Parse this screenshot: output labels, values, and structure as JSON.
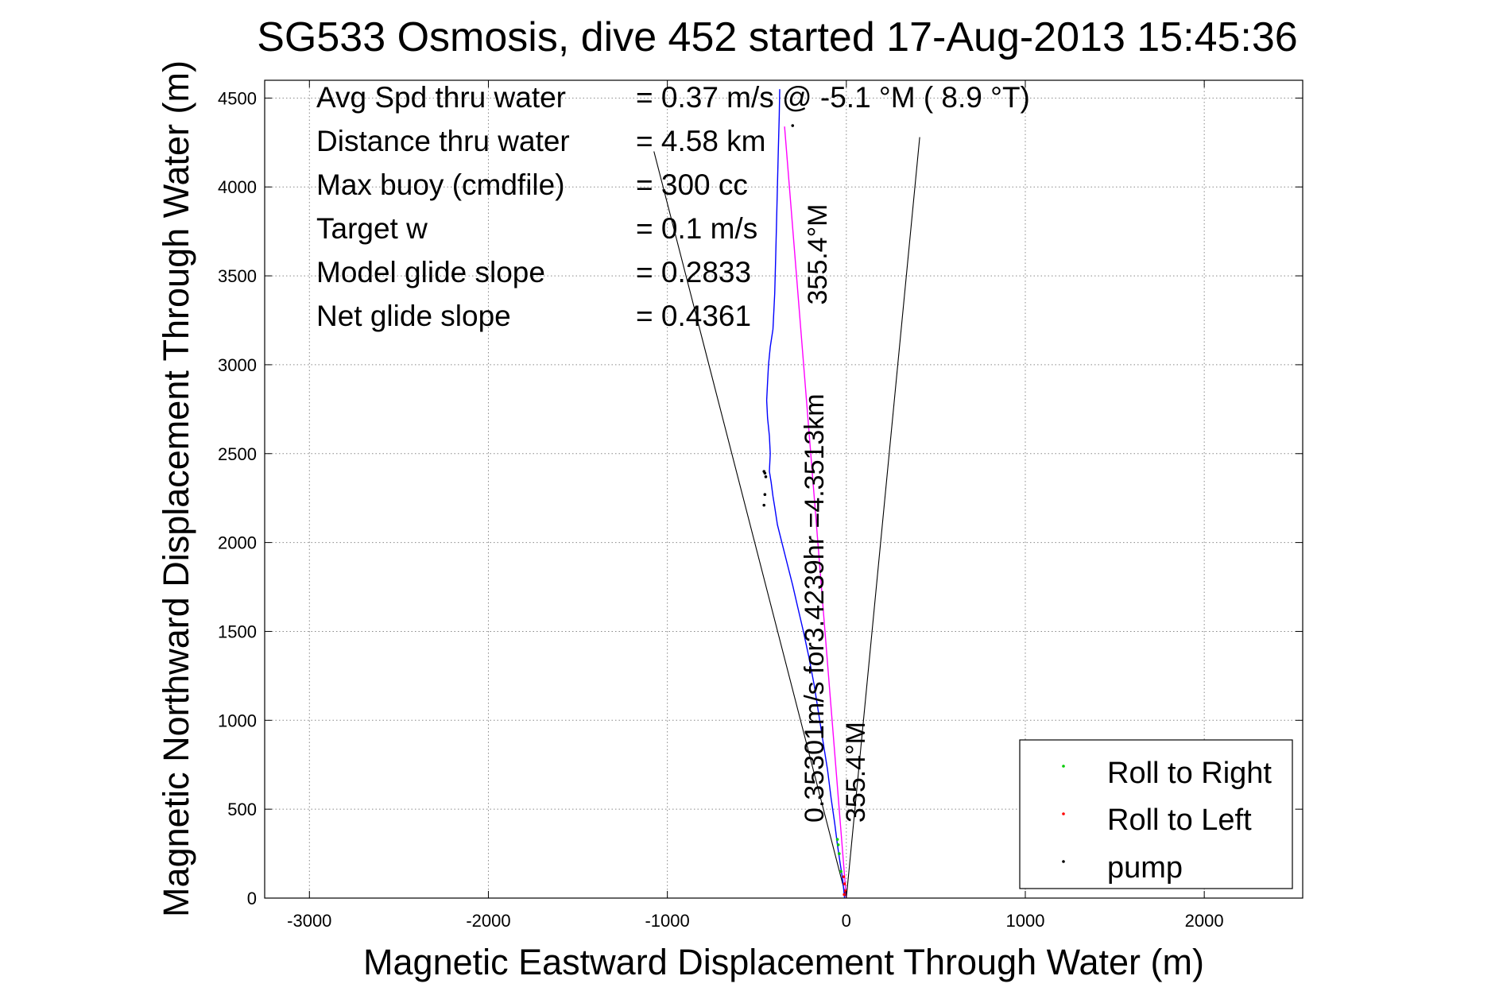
{
  "chart_data": {
    "type": "line",
    "title": "SG533 Osmosis, dive 452 started 17-Aug-2013 15:45:36",
    "xlabel": "Magnetic Eastward Displacement Through Water (m)",
    "ylabel": "Magnetic Northward Displacement Through Water (m)",
    "xlim": [
      -3250,
      2550
    ],
    "ylim": [
      0,
      4600
    ],
    "xticks": [
      "-3000",
      "-2000",
      "-1000",
      "0",
      "1000",
      "2000"
    ],
    "yticks": [
      "0",
      "500",
      "1000",
      "1500",
      "2000",
      "2500",
      "3000",
      "3500",
      "4000",
      "4500"
    ],
    "grid": true,
    "legend_position": "bottom-right",
    "legend": [
      {
        "label": "Roll to Right",
        "color": "#00cc00"
      },
      {
        "label": "Roll to Left",
        "color": "#ff0000"
      },
      {
        "label": "pump",
        "color": "#000000"
      }
    ],
    "stats": [
      {
        "label": "Avg Spd thru water",
        "value": "=  0.37 m/s @  -5.1 °M (  8.9 °T)"
      },
      {
        "label": "Distance thru water",
        "value": "=  4.58 km"
      },
      {
        "label": "Max buoy (cmdfile)",
        "value": "= 300 cc"
      },
      {
        "label": "Target w",
        "value": "= 0.1 m/s"
      },
      {
        "label": "Model glide slope",
        "value": "= 0.2833"
      },
      {
        "label": "Net glide slope",
        "value": "= 0.4361"
      }
    ],
    "annotations": [
      "355.4°M",
      "0.35301m/s for3.4239hr =4.3513km",
      "355.4°M"
    ],
    "series": [
      {
        "name": "track",
        "color": "#0000ff",
        "x": [
          -10,
          -20,
          -35,
          -50,
          -65,
          -85,
          -105,
          -130,
          -155,
          -180,
          -210,
          -240,
          -270,
          -300,
          -330,
          -360,
          -385,
          -400,
          -410,
          -420,
          -430,
          -425,
          -430,
          -440,
          -445,
          -440,
          -435,
          -425,
          -410,
          -400,
          -395,
          -390,
          -385,
          -380,
          -375,
          -372
        ],
        "y": [
          0,
          100,
          200,
          300,
          420,
          560,
          720,
          880,
          1040,
          1200,
          1360,
          1500,
          1630,
          1760,
          1880,
          2000,
          2100,
          2200,
          2260,
          2340,
          2400,
          2500,
          2600,
          2700,
          2800,
          2900,
          3000,
          3100,
          3200,
          3400,
          3600,
          3800,
          4000,
          4200,
          4400,
          4550
        ]
      },
      {
        "name": "heading line",
        "color": "#ff00ff",
        "x": [
          0,
          -345
        ],
        "y": [
          0,
          4340
        ]
      }
    ],
    "fan_lines": [
      {
        "x": [
          0,
          -1075
        ],
        "y": [
          0,
          4200
        ]
      },
      {
        "x": [
          0,
          410
        ],
        "y": [
          0,
          4280
        ]
      }
    ],
    "roll_right_points": {
      "x": [
        -50,
        -45,
        -40,
        -30
      ],
      "y": [
        330,
        300,
        250,
        150
      ]
    },
    "roll_left_points": {
      "x": [
        -15,
        -10,
        -5,
        -12
      ],
      "y": [
        120,
        80,
        40,
        20
      ]
    },
    "pump_points": {
      "x": [
        -460,
        -455,
        -450,
        -455,
        -460,
        -300
      ],
      "y": [
        2210,
        2270,
        2370,
        2390,
        2400,
        4345
      ]
    }
  }
}
